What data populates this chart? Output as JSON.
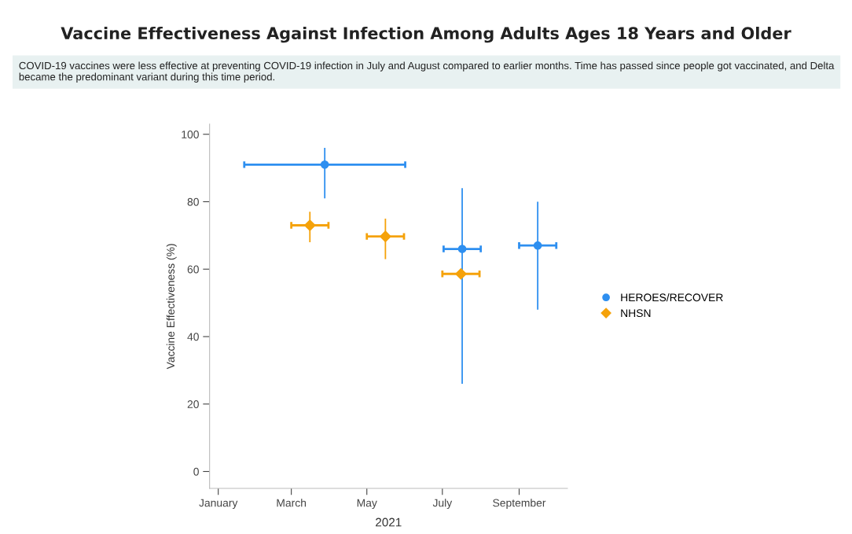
{
  "chart_data": {
    "type": "scatter",
    "title": "Vaccine Effectiveness Against Infection Among Adults Ages 18 Years and Older",
    "subtitle": "COVID-19 vaccines were less effective at preventing COVID-19 infection in July and August compared to earlier months. Time has passed since people got vaccinated, and Delta became the predominant variant during this time period.",
    "xlabel": "2021",
    "ylabel": "Vaccine Effectiveness (%)",
    "series": [
      {
        "name": "HEROES/RECOVER",
        "color": "#2e8ff0",
        "marker": "circle",
        "x": [
          "2021-03-28",
          "2021-07-17",
          "2021-09-16"
        ],
        "values": [
          91,
          66,
          67
        ],
        "errors": [
          [
            81,
            96
          ],
          [
            26,
            84
          ],
          [
            48,
            80
          ]
        ],
        "xerrors": [
          65,
          15,
          15
        ]
      },
      {
        "name": "NHSN",
        "color": "#f5a20a",
        "marker": "diamond",
        "x": [
          "2021-03-16",
          "2021-05-16",
          "2021-07-16"
        ],
        "values": [
          73,
          69.7,
          58.6
        ],
        "errors": [
          [
            68,
            77
          ],
          [
            63,
            75
          ],
          [
            57.5,
            60
          ]
        ],
        "xerrors": [
          15,
          15,
          15
        ]
      }
    ],
    "xlim": [
      "2020-12-25",
      "2021-10-10"
    ],
    "xticks": [
      {
        "value": "2021-01-01",
        "label": "January"
      },
      {
        "value": "2021-03-01",
        "label": "March"
      },
      {
        "value": "2021-05-01",
        "label": "May"
      },
      {
        "value": "2021-07-01",
        "label": "July"
      },
      {
        "value": "2021-09-01",
        "label": "September"
      }
    ],
    "ylim": [
      -5,
      103
    ],
    "yticks": [
      0,
      20,
      40,
      60,
      80,
      100
    ],
    "grid": false,
    "legend": "right"
  }
}
